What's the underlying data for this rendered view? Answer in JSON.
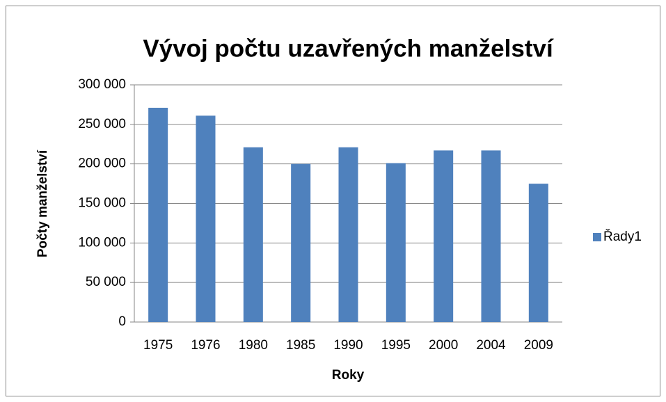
{
  "chart_data": {
    "type": "bar",
    "title": "Vývoj počtu uzavřených manželství",
    "x_label": "Roky",
    "y_label": "Počty manželství",
    "categories": [
      "1975",
      "1976",
      "1980",
      "1985",
      "1990",
      "1995",
      "2000",
      "2004",
      "2009"
    ],
    "series": [
      {
        "name": "Řady1",
        "color": "#4f81bd",
        "values": [
          271000,
          261000,
          221000,
          200000,
          221000,
          201000,
          217000,
          217000,
          175000
        ]
      }
    ],
    "ylim": [
      0,
      300000
    ],
    "yticks": [
      0,
      {
        "value": 50000,
        "label": "50 000"
      },
      {
        "value": 100000,
        "label": "100 000"
      },
      {
        "value": 150000,
        "label": "150 000"
      },
      {
        "value": 200000,
        "label": "200 000"
      },
      {
        "value": 250000,
        "label": "250 000"
      },
      {
        "value": 300000,
        "label": "300 000"
      }
    ],
    "grid": true,
    "legend": "right"
  }
}
